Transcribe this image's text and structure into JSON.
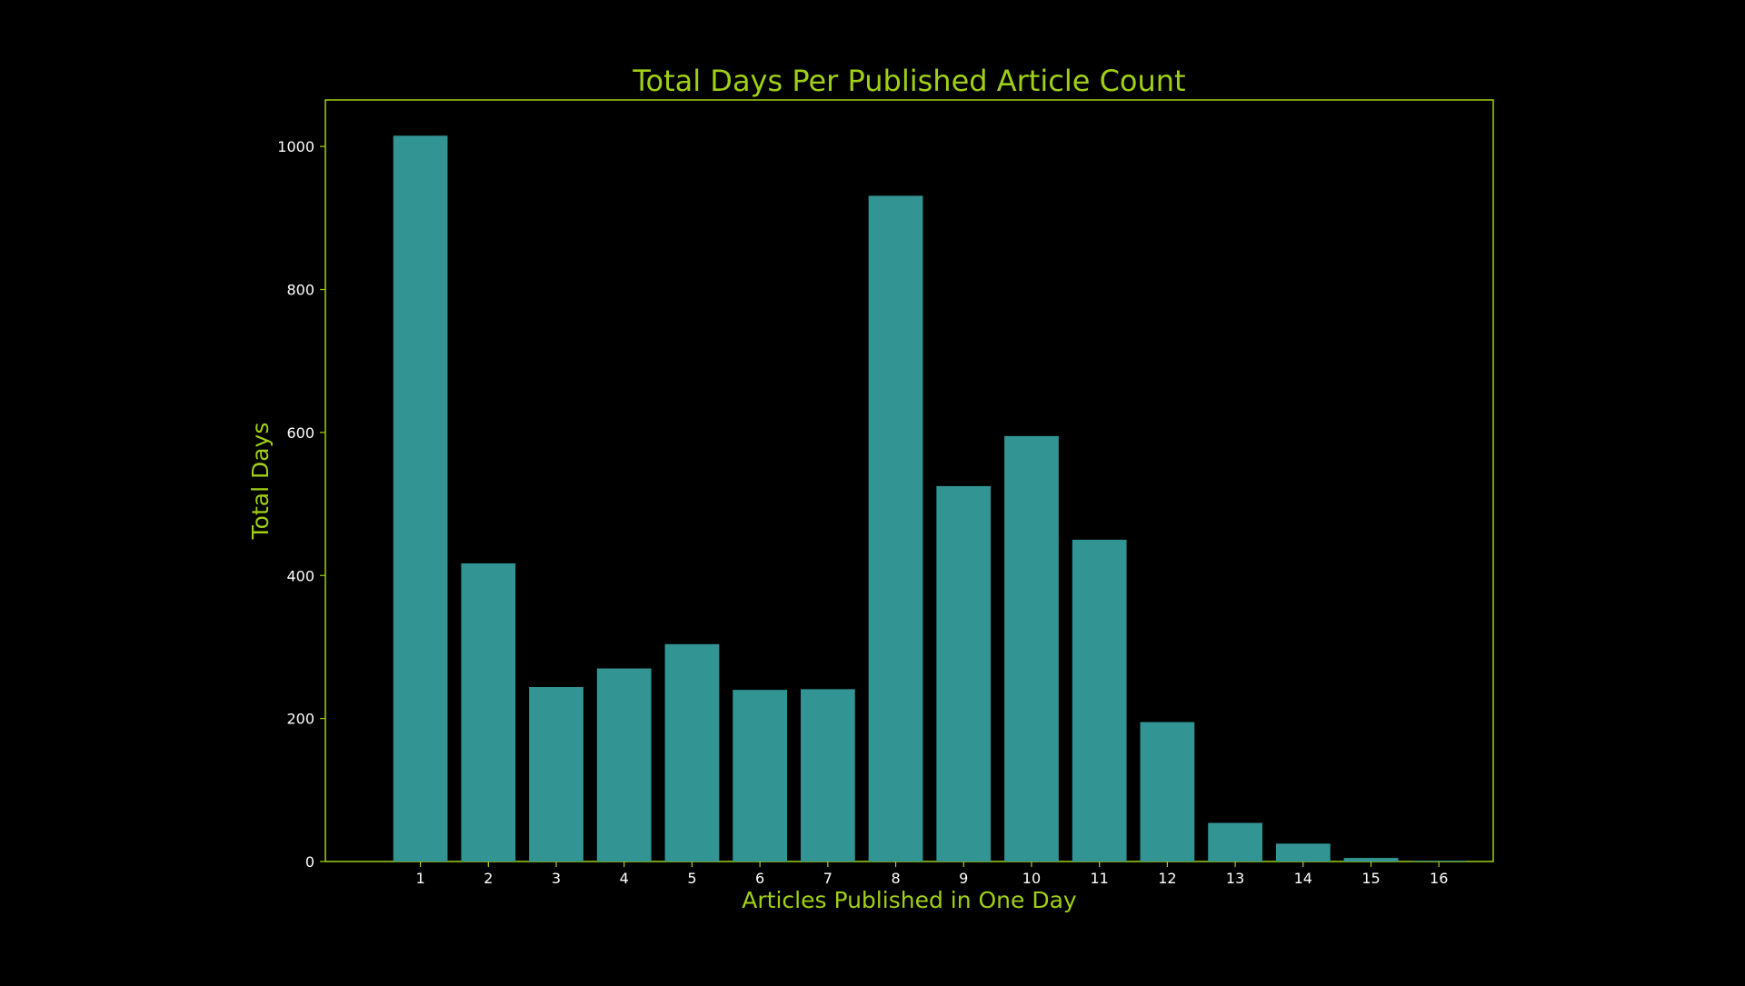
{
  "chart_data": {
    "type": "bar",
    "title": "Total Days Per Published Article Count",
    "xlabel": "Articles Published in One Day",
    "ylabel": "Total Days",
    "categories": [
      "1",
      "2",
      "3",
      "4",
      "5",
      "6",
      "7",
      "8",
      "9",
      "10",
      "11",
      "12",
      "13",
      "14",
      "15",
      "16"
    ],
    "values": [
      1015,
      417,
      244,
      270,
      304,
      240,
      241,
      931,
      525,
      595,
      450,
      195,
      54,
      25,
      5,
      1
    ],
    "ylim": [
      0,
      1065
    ],
    "xlim": [
      -0.4,
      16.8
    ],
    "yticks": [
      0,
      200,
      400,
      600,
      800,
      1000
    ],
    "grid": false,
    "legend": "none",
    "colors": {
      "background": "#000000",
      "bar": "#339494",
      "accent": "#a0d015",
      "tick_text": "#ffffff"
    }
  }
}
